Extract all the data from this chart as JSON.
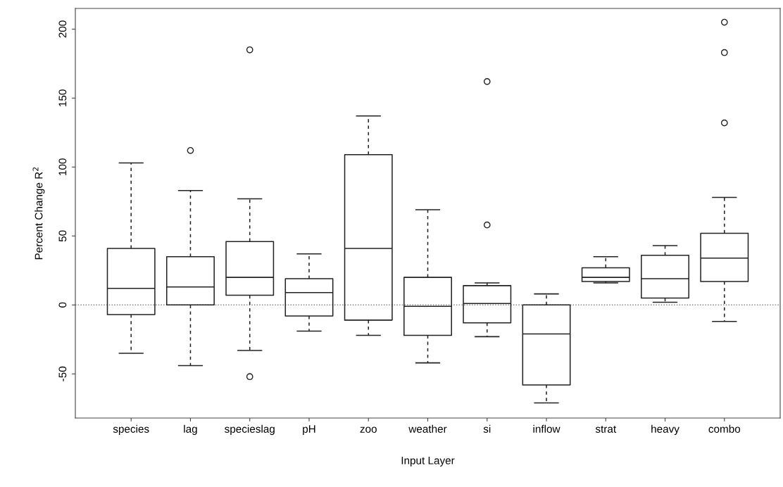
{
  "chart_data": {
    "type": "box",
    "xlabel": "Input Layer",
    "ylabel": "Percent Change R$^{2}$",
    "categories": [
      "species",
      "lag",
      "specieslag",
      "pH",
      "zoo",
      "weather",
      "si",
      "inflow",
      "strat",
      "heavy",
      "combo"
    ],
    "boxes": [
      {
        "low": -35,
        "q1": -7,
        "median": 12,
        "q3": 41,
        "high": 103
      },
      {
        "low": -44,
        "q1": 0,
        "median": 13,
        "q3": 35,
        "high": 83,
        "outliers": [
          112
        ]
      },
      {
        "low": -33,
        "q1": 7,
        "median": 20,
        "q3": 46,
        "high": 77,
        "outliers": [
          185,
          -52
        ]
      },
      {
        "low": -19,
        "q1": -8,
        "median": 9,
        "q3": 19,
        "high": 37
      },
      {
        "low": -22,
        "q1": -11,
        "median": 41,
        "q3": 109,
        "high": 137
      },
      {
        "low": -42,
        "q1": -22,
        "median": -1,
        "q3": 20,
        "high": 69
      },
      {
        "low": -23,
        "q1": -13,
        "median": 1,
        "q3": 14,
        "high": 16,
        "outliers": [
          162,
          58
        ]
      },
      {
        "low": -71,
        "q1": -58,
        "median": -21,
        "q3": 0,
        "high": 8
      },
      {
        "low": 16,
        "q1": 17,
        "median": 20,
        "q3": 27,
        "high": 35
      },
      {
        "low": 2,
        "q1": 5,
        "median": 19,
        "q3": 36,
        "high": 43
      },
      {
        "low": -12,
        "q1": 17,
        "median": 34,
        "q3": 52,
        "high": 78,
        "outliers": [
          205,
          183,
          132
        ]
      }
    ],
    "ylim": [
      -82,
      215
    ],
    "yticks": [
      -50,
      0,
      50,
      100,
      150,
      200
    ],
    "ref_lines": [
      {
        "axis": "y",
        "value": 0,
        "color": "#808080",
        "line_style": "dotted"
      }
    ],
    "grid": false
  }
}
